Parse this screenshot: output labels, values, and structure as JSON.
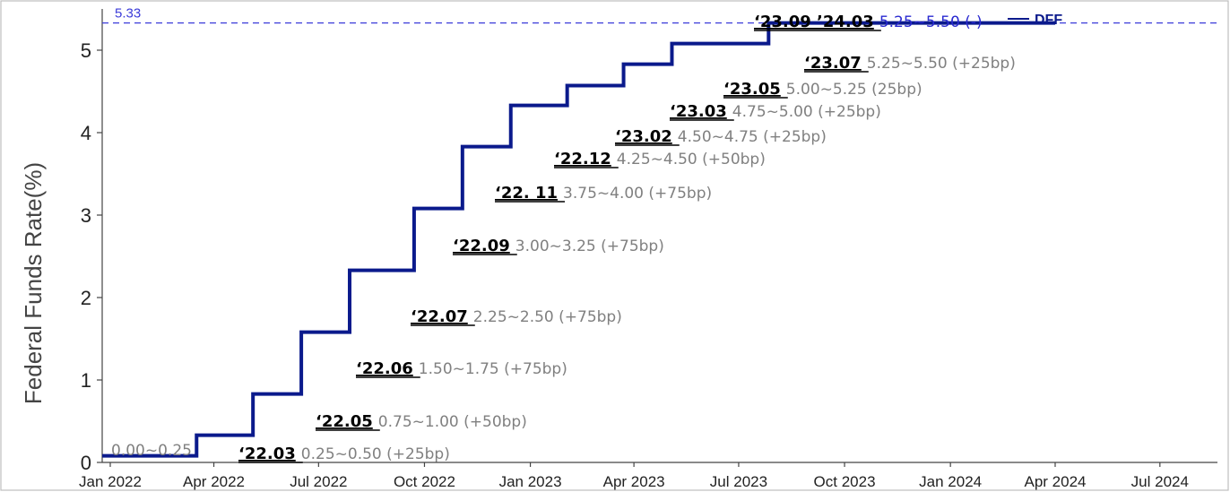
{
  "chart_data": {
    "type": "line",
    "title": "",
    "xlabel": "",
    "ylabel": "Federal Funds Rate(%)",
    "x_ticks": [
      "Jan 2022",
      "Apr 2022",
      "Jul 2022",
      "Oct 2022",
      "Jan 2023",
      "Apr 2023",
      "Jul 2023",
      "Oct 2023",
      "Jan 2024",
      "Apr 2024",
      "Jul 2024"
    ],
    "xlim": [
      "2021-12-25",
      "2024-08-20"
    ],
    "y_ticks": [
      0,
      1,
      2,
      3,
      4,
      5
    ],
    "ylim": [
      0,
      5.5
    ],
    "grid": false,
    "legend_position": "top-right",
    "series": [
      {
        "name": "DFF",
        "color": "#0b1a8c",
        "step": true,
        "points": [
          {
            "x": "2021-12-25",
            "y": 0.08
          },
          {
            "x": "2022-03-17",
            "y": 0.33
          },
          {
            "x": "2022-05-05",
            "y": 0.83
          },
          {
            "x": "2022-06-16",
            "y": 1.58
          },
          {
            "x": "2022-07-28",
            "y": 2.33
          },
          {
            "x": "2022-09-22",
            "y": 3.08
          },
          {
            "x": "2022-11-03",
            "y": 3.83
          },
          {
            "x": "2022-12-15",
            "y": 4.33
          },
          {
            "x": "2023-02-02",
            "y": 4.57
          },
          {
            "x": "2023-03-23",
            "y": 4.83
          },
          {
            "x": "2023-05-04",
            "y": 5.08
          },
          {
            "x": "2023-07-27",
            "y": 5.33
          },
          {
            "x": "2024-04-01",
            "y": 5.33
          }
        ]
      }
    ],
    "reference_line": {
      "y": 5.33,
      "label": "5.33",
      "color": "#3b3bd9"
    },
    "initial_label": "0.00~0.25",
    "annotations": [
      {
        "date": "‘23.09 ’24.03",
        "range": "5.25~5.50 (-)",
        "style": "blue"
      },
      {
        "date": "‘23.07",
        "range": "5.25~5.50 (+25bp)"
      },
      {
        "date": "‘23.05",
        "range": "5.00~5.25 (25bp)"
      },
      {
        "date": "‘23.03",
        "range": "4.75~5.00 (+25bp)"
      },
      {
        "date": "‘23.02",
        "range": "4.50~4.75 (+25bp)"
      },
      {
        "date": "‘22.12",
        "range": "4.25~4.50 (+50bp)"
      },
      {
        "date": "‘22. 11",
        "range": "3.75~4.00 (+75bp)"
      },
      {
        "date": "‘22.09",
        "range": "3.00~3.25 (+75bp)"
      },
      {
        "date": "‘22.07",
        "range": "2.25~2.50 (+75bp)"
      },
      {
        "date": "‘22.06",
        "range": "1.50~1.75 (+75bp)"
      },
      {
        "date": "‘22.05",
        "range": "0.75~1.00 (+50bp)"
      },
      {
        "date": "‘22.03",
        "range": "0.25~0.50 (+25bp)"
      }
    ]
  }
}
